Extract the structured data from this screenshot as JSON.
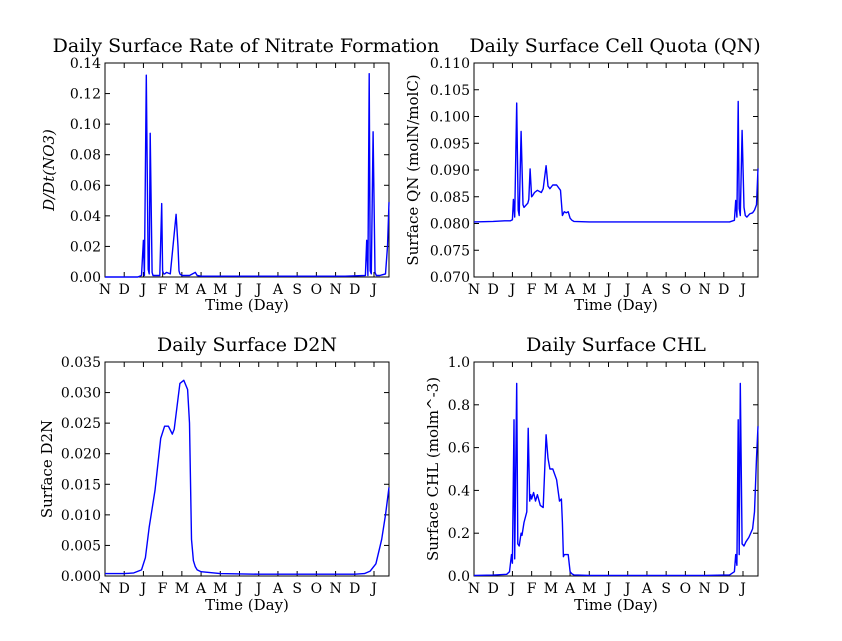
{
  "figure": {
    "month_ticks": [
      "N",
      "D",
      "J",
      "F",
      "M",
      "A",
      "M",
      "J",
      "J",
      "A",
      "S",
      "O",
      "N",
      "D",
      "J"
    ]
  },
  "chart_data": [
    {
      "id": "nitrate",
      "type": "line",
      "title": "Daily Surface Rate of Nitrate Formation",
      "xlabel": "Time (Day)",
      "ylabel": "D/Dt(NO3)",
      "ylim": [
        0,
        0.14
      ],
      "yticks": [
        "0.00",
        "0.02",
        "0.04",
        "0.06",
        "0.08",
        "0.10",
        "0.12",
        "0.14"
      ],
      "ytick_values": [
        0,
        0.02,
        0.04,
        0.06,
        0.08,
        0.1,
        0.12,
        0.14
      ],
      "x": [
        0,
        1.7,
        1.9,
        2.0,
        2.05,
        2.15,
        2.25,
        2.3,
        2.35,
        2.45,
        2.5,
        2.55,
        2.6,
        2.85,
        2.95,
        3.0,
        3.05,
        3.1,
        3.2,
        3.4,
        3.7,
        3.8,
        3.85,
        3.9,
        4.0,
        4.4,
        4.7,
        4.8,
        5.0,
        12.5,
        13.55,
        13.62,
        13.68,
        13.75,
        13.8,
        13.86,
        13.95,
        14.05,
        14.12,
        14.2,
        14.3,
        14.6,
        14.7,
        14.78
      ],
      "values": [
        0,
        0,
        0.001,
        0.024,
        0.001,
        0.132,
        0.005,
        0.002,
        0.094,
        0.003,
        0.001,
        0.001,
        0.001,
        0.001,
        0.048,
        0.004,
        0.002,
        0.002,
        0.003,
        0.002,
        0.041,
        0.02,
        0.004,
        0.002,
        0.001,
        0.001,
        0.003,
        0.001,
        0.0005,
        0.0005,
        0.001,
        0.024,
        0.001,
        0.133,
        0.004,
        0.002,
        0.095,
        0.003,
        0.001,
        0.001,
        0.001,
        0.002,
        0.02,
        0.049
      ],
      "xlim": [
        0,
        14.78
      ]
    },
    {
      "id": "cellquota",
      "type": "line",
      "title": "Daily Surface Cell Quota (QN)",
      "xlabel": "Time (Day)",
      "ylabel": "Surface QN (molN/molC)",
      "ylim": [
        0.07,
        0.11
      ],
      "yticks": [
        "0.070",
        "0.075",
        "0.080",
        "0.085",
        "0.090",
        "0.095",
        "0.100",
        "0.105",
        "0.110"
      ],
      "ytick_values": [
        0.07,
        0.075,
        0.08,
        0.085,
        0.09,
        0.095,
        0.1,
        0.105,
        0.11
      ],
      "x": [
        0,
        1,
        1.6,
        1.9,
        2.0,
        2.05,
        2.12,
        2.22,
        2.3,
        2.35,
        2.45,
        2.55,
        2.6,
        2.8,
        2.85,
        2.92,
        3.0,
        3.05,
        3.15,
        3.3,
        3.5,
        3.6,
        3.75,
        3.85,
        3.95,
        4.1,
        4.3,
        4.5,
        4.6,
        4.7,
        4.8,
        4.9,
        5.0,
        5.1,
        5.2,
        6,
        8,
        10,
        12,
        13.3,
        13.55,
        13.62,
        13.68,
        13.75,
        13.8,
        13.86,
        13.95,
        14.05,
        14.12,
        14.2,
        14.35,
        14.5,
        14.6,
        14.7,
        14.78
      ],
      "values": [
        0.0803,
        0.0804,
        0.0805,
        0.0805,
        0.0807,
        0.0845,
        0.0812,
        0.1025,
        0.0825,
        0.0815,
        0.0972,
        0.0835,
        0.083,
        0.0838,
        0.0845,
        0.0902,
        0.085,
        0.0852,
        0.0858,
        0.0862,
        0.0858,
        0.0865,
        0.0908,
        0.087,
        0.0865,
        0.0872,
        0.0872,
        0.0862,
        0.0815,
        0.0822,
        0.082,
        0.0822,
        0.081,
        0.0806,
        0.0804,
        0.0803,
        0.0803,
        0.0803,
        0.0803,
        0.0803,
        0.0806,
        0.0843,
        0.0812,
        0.1028,
        0.0828,
        0.0815,
        0.0974,
        0.083,
        0.0815,
        0.0812,
        0.0818,
        0.082,
        0.0825,
        0.0835,
        0.0903
      ],
      "xlim": [
        0,
        14.78
      ]
    },
    {
      "id": "d2n",
      "type": "line",
      "title": "Daily Surface D2N",
      "xlabel": "Time (Day)",
      "ylabel": "Surface D2N",
      "ylim": [
        0,
        0.035
      ],
      "yticks": [
        "0.000",
        "0.005",
        "0.010",
        "0.015",
        "0.020",
        "0.025",
        "0.030",
        "0.035"
      ],
      "ytick_values": [
        0,
        0.005,
        0.01,
        0.015,
        0.02,
        0.025,
        0.03,
        0.035
      ],
      "x": [
        0,
        1.0,
        1.5,
        1.9,
        2.1,
        2.3,
        2.6,
        2.9,
        3.1,
        3.3,
        3.5,
        3.6,
        3.8,
        3.9,
        4.1,
        4.3,
        4.4,
        4.5,
        4.6,
        4.7,
        4.8,
        5.0,
        6.0,
        8.0,
        10.0,
        12.0,
        13.0,
        13.5,
        13.8,
        14.1,
        14.4,
        14.6,
        14.78
      ],
      "values": [
        0.0004,
        0.0004,
        0.0005,
        0.001,
        0.003,
        0.008,
        0.014,
        0.0225,
        0.0245,
        0.0245,
        0.0232,
        0.024,
        0.029,
        0.0315,
        0.032,
        0.0305,
        0.025,
        0.006,
        0.0025,
        0.0015,
        0.001,
        0.0007,
        0.0004,
        0.0003,
        0.0003,
        0.0003,
        0.0003,
        0.0004,
        0.0008,
        0.002,
        0.006,
        0.01,
        0.0145
      ],
      "xlim": [
        0,
        14.78
      ]
    },
    {
      "id": "chl",
      "type": "line",
      "title": "Daily Surface CHL",
      "xlabel": "Time (Day)",
      "ylabel": "Surface CHL (molm^-3)",
      "ylim": [
        0,
        1.0
      ],
      "yticks": [
        "0.0",
        "0.2",
        "0.4",
        "0.6",
        "0.8",
        "1.0"
      ],
      "ytick_values": [
        0,
        0.2,
        0.4,
        0.6,
        0.8,
        1.0
      ],
      "x": [
        0,
        1.0,
        1.7,
        1.85,
        1.95,
        2.0,
        2.08,
        2.12,
        2.22,
        2.28,
        2.35,
        2.45,
        2.5,
        2.6,
        2.75,
        2.82,
        2.9,
        2.95,
        3.0,
        3.1,
        3.2,
        3.3,
        3.45,
        3.6,
        3.75,
        3.85,
        3.95,
        4.1,
        4.3,
        4.45,
        4.55,
        4.6,
        4.65,
        4.7,
        4.8,
        4.9,
        5.0,
        5.1,
        5.2,
        6,
        8,
        10,
        12,
        13.3,
        13.55,
        13.62,
        13.68,
        13.75,
        13.8,
        13.86,
        13.95,
        14.05,
        14.15,
        14.3,
        14.5,
        14.6,
        14.7,
        14.78
      ],
      "values": [
        0.003,
        0.004,
        0.008,
        0.02,
        0.1,
        0.06,
        0.73,
        0.08,
        0.9,
        0.15,
        0.14,
        0.2,
        0.19,
        0.25,
        0.3,
        0.69,
        0.35,
        0.38,
        0.36,
        0.39,
        0.35,
        0.38,
        0.33,
        0.32,
        0.66,
        0.55,
        0.5,
        0.5,
        0.45,
        0.35,
        0.36,
        0.25,
        0.09,
        0.1,
        0.1,
        0.1,
        0.02,
        0.01,
        0.005,
        0.003,
        0.003,
        0.003,
        0.003,
        0.005,
        0.02,
        0.1,
        0.05,
        0.73,
        0.1,
        0.9,
        0.15,
        0.14,
        0.16,
        0.18,
        0.22,
        0.3,
        0.55,
        0.7
      ],
      "xlim": [
        0,
        14.78
      ]
    }
  ]
}
